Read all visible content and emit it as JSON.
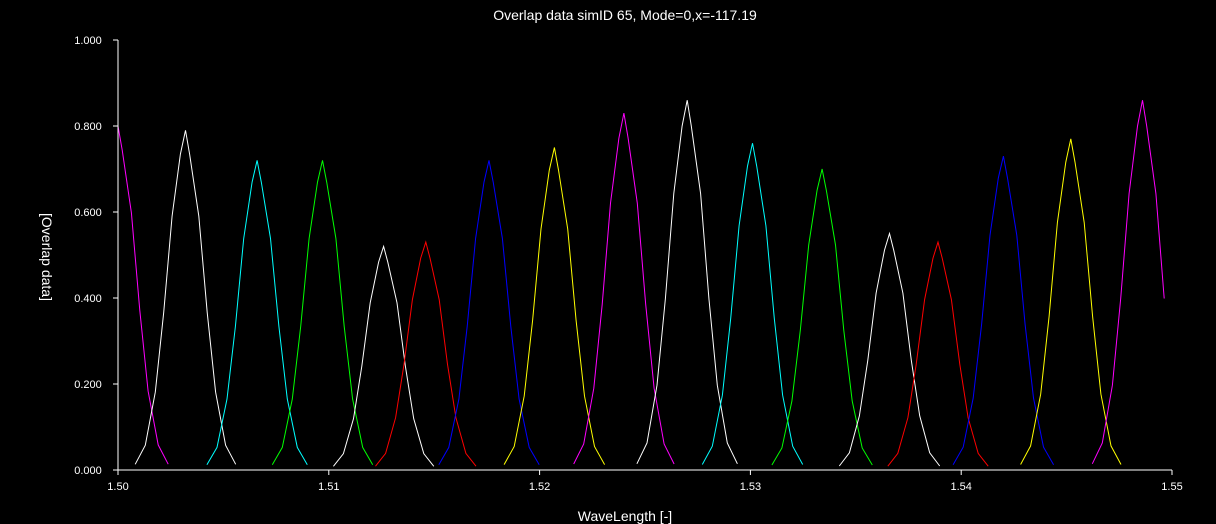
{
  "chart_data": {
    "type": "line",
    "title": "Overlap data simID 65, Mode=0,x=-117.19",
    "xlabel": "WaveLength [-]",
    "ylabel": "[Overlap data]",
    "xlim": [
      1.5,
      1.55
    ],
    "ylim": [
      0.0,
      1.0
    ],
    "xticks": [
      "1.50",
      "1.51",
      "1.52",
      "1.53",
      "1.54",
      "1.55"
    ],
    "yticks": [
      "0.000",
      "0.200",
      "0.400",
      "0.600",
      "0.800",
      "1.000"
    ],
    "grid": false,
    "background": "#000000",
    "axis_color": "#ffffff",
    "peak_halfwidth": 0.00135,
    "series": [
      {
        "color": "#ff00ff",
        "values": [
          {
            "x": 1.5,
            "y": 0.8
          }
        ]
      },
      {
        "color": "#ffffff",
        "values": [
          {
            "x": 1.5032,
            "y": 0.79
          }
        ]
      },
      {
        "color": "#00ffff",
        "values": [
          {
            "x": 1.5066,
            "y": 0.72
          }
        ]
      },
      {
        "color": "#00ff00",
        "values": [
          {
            "x": 1.5097,
            "y": 0.72
          }
        ]
      },
      {
        "color": "#ffffff",
        "values": [
          {
            "x": 1.5126,
            "y": 0.52
          }
        ]
      },
      {
        "color": "#ff0000",
        "values": [
          {
            "x": 1.5146,
            "y": 0.53
          }
        ]
      },
      {
        "color": "#0000ff",
        "values": [
          {
            "x": 1.5176,
            "y": 0.72
          }
        ]
      },
      {
        "color": "#ffff00",
        "values": [
          {
            "x": 1.5207,
            "y": 0.75
          }
        ]
      },
      {
        "color": "#ff00ff",
        "values": [
          {
            "x": 1.524,
            "y": 0.83
          }
        ]
      },
      {
        "color": "#ffffff",
        "values": [
          {
            "x": 1.527,
            "y": 0.86
          }
        ]
      },
      {
        "color": "#00ffff",
        "values": [
          {
            "x": 1.5301,
            "y": 0.76
          }
        ]
      },
      {
        "color": "#00ff00",
        "values": [
          {
            "x": 1.5334,
            "y": 0.7
          }
        ]
      },
      {
        "color": "#ffffff",
        "values": [
          {
            "x": 1.5366,
            "y": 0.55
          }
        ]
      },
      {
        "color": "#ff0000",
        "values": [
          {
            "x": 1.5389,
            "y": 0.53
          }
        ]
      },
      {
        "color": "#0000ff",
        "values": [
          {
            "x": 1.542,
            "y": 0.73
          }
        ]
      },
      {
        "color": "#ffff00",
        "values": [
          {
            "x": 1.5452,
            "y": 0.77
          }
        ]
      },
      {
        "color": "#ff00ff",
        "values": [
          {
            "x": 1.5486,
            "y": 0.86
          }
        ]
      }
    ]
  }
}
